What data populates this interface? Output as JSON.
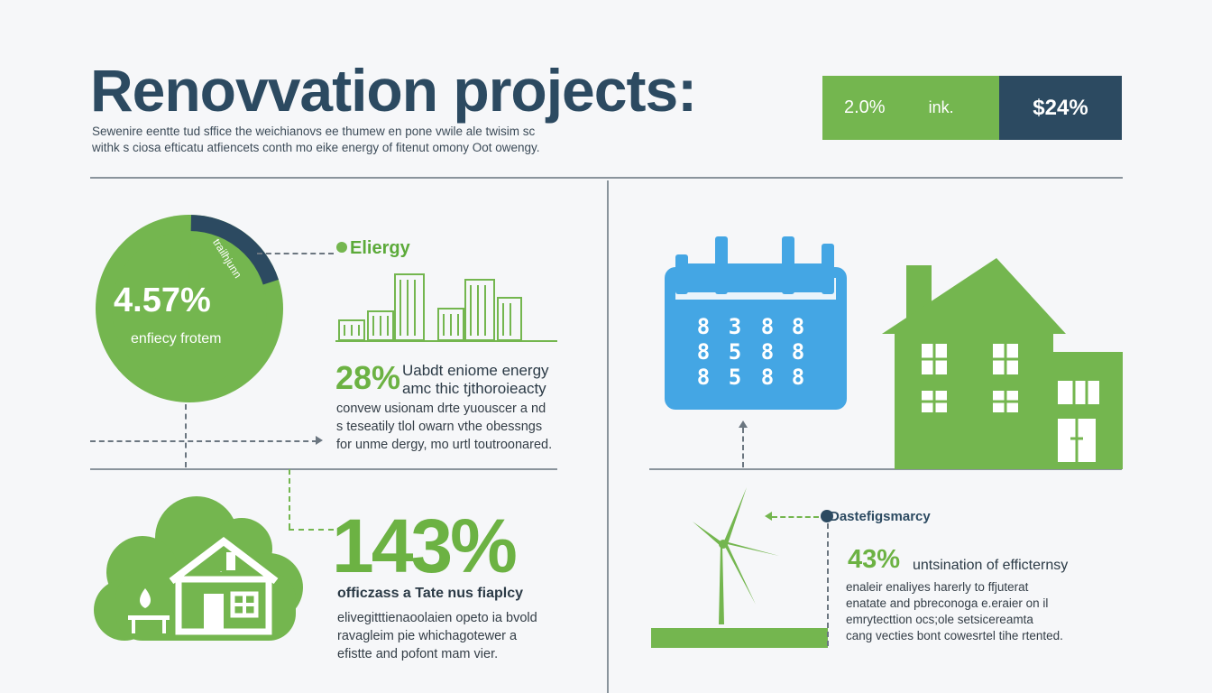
{
  "header": {
    "title": "Renovvation projects:",
    "subtitle_line1": "Sewenire eentte tud sffice the weichianovs ee thumew en pone vwile ale twisim sc",
    "subtitle_line2": "withk s ciosa efticatu atfiencets conth mo eike energy of fitenut omony Oot owengy."
  },
  "stat_bar": {
    "left_value": "2.0%",
    "left_label": "ink.",
    "right_value": "$24%",
    "colors": {
      "green": "#74b64f",
      "dark": "#2c4a61"
    }
  },
  "donut": {
    "percent_label": "4.57%",
    "caption": "enfiecy frotem",
    "segment_text": "trailhjunn",
    "energy_label": "Eliergy",
    "fraction_dark": 0.2
  },
  "block_28": {
    "percent": "28%",
    "heading_line1": "Uabdt eniome energy",
    "heading_line2": "amc thic tjthoroieacty",
    "body_line1": "convew usionam drte yuouscer a nd",
    "body_line2": "s teseatily tlol owarn vthe obessngs",
    "body_line3": "for unme dergy, mo urtl toutroonared."
  },
  "block_143": {
    "percent": "143%",
    "heading": "officzass a Tate nus fiaplcy",
    "body_line1": "elivegitttienaoolaien opeto ia bvold",
    "body_line2": "ravagleim pie whichagotewer a",
    "body_line3": "efistte and pofont mam vier."
  },
  "block_43": {
    "callout": "Dastefigsmarcy",
    "percent": "43%",
    "heading": "untsination of efficternsy",
    "body_line1": "enaleir enaliyes harerly to ffjuterat",
    "body_line2": "enatate and pbreconoga e.eraier on il",
    "body_line3": "emrytecttion ocs;ole setsicereamta",
    "body_line4": "cang vecties bont cowesrtel tihe rtented."
  },
  "calendar_glyphs": [
    "8",
    "3",
    "8",
    "8",
    "8",
    "5",
    "8",
    "8",
    "8",
    "5",
    "8",
    "8"
  ],
  "icon_colors": {
    "green": "#74b64f",
    "blue": "#44a6e4",
    "dark": "#2c4a61"
  }
}
